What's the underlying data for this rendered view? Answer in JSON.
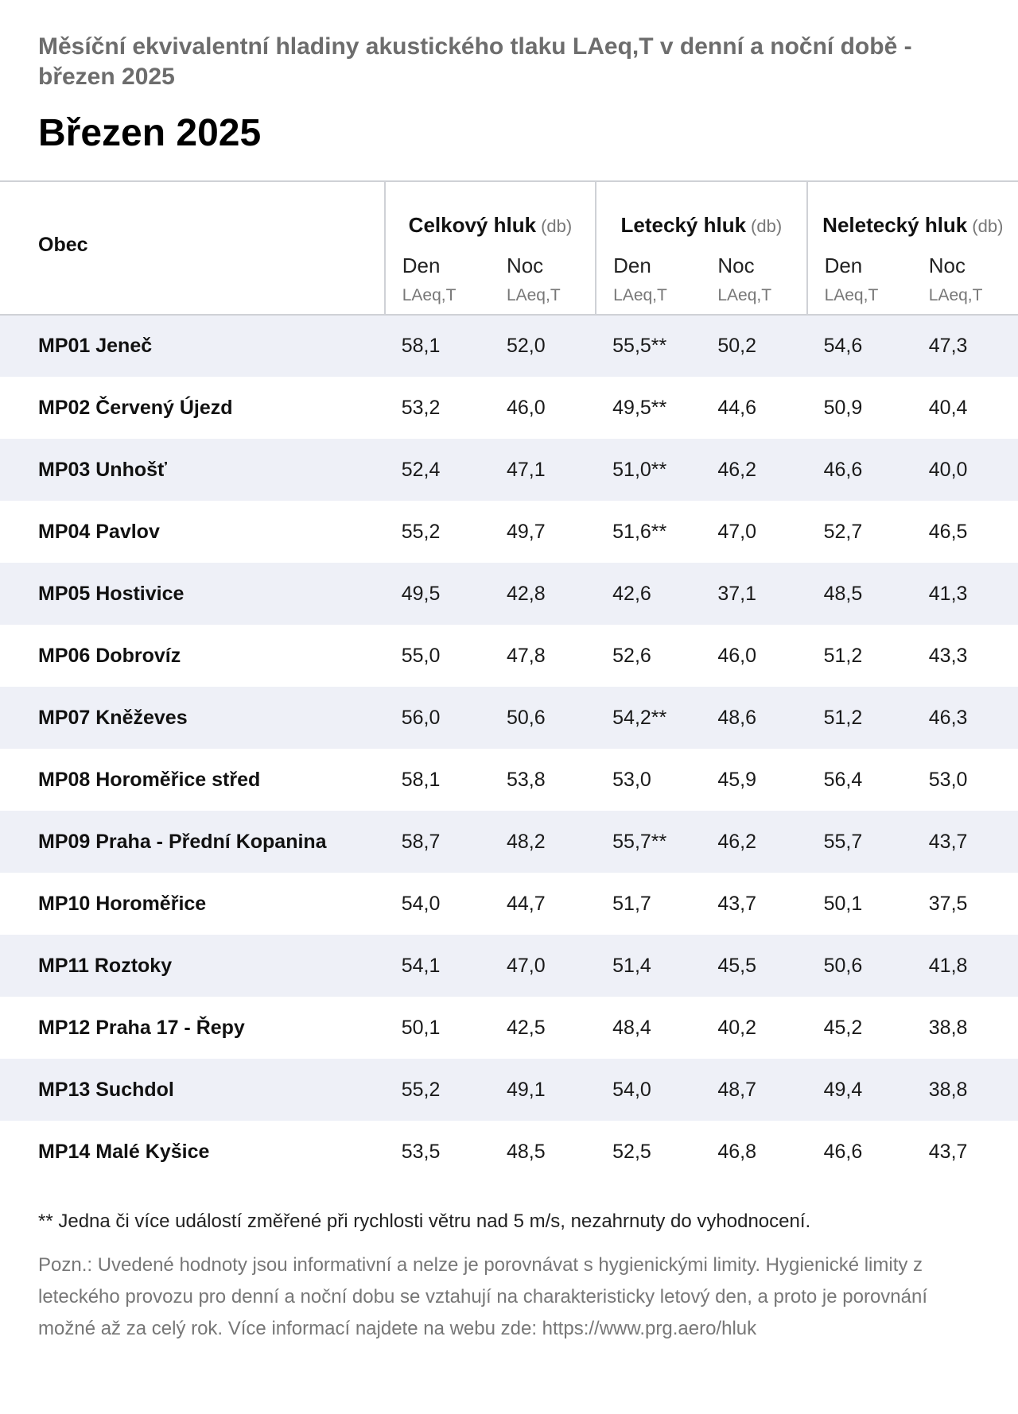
{
  "header": {
    "subtitle": "Měsíční ekvivalentní hladiny akustického tlaku LAeq,T v denní a noční době - březen 2025",
    "title": "Březen 2025"
  },
  "table": {
    "obec_label": "Obec",
    "groups": [
      {
        "label": "Celkový hluk",
        "unit": "(db)"
      },
      {
        "label": "Letecký hluk",
        "unit": "(db)"
      },
      {
        "label": "Neletecký hluk",
        "unit": "(db)"
      }
    ],
    "sub": {
      "den": "Den",
      "noc": "Noc",
      "unit": "LAeq,T"
    },
    "rows": [
      {
        "obec": "MP01 Jeneč",
        "values": [
          "58,1",
          "52,0",
          "55,5**",
          "50,2",
          "54,6",
          "47,3"
        ]
      },
      {
        "obec": "MP02 Červený Újezd",
        "values": [
          "53,2",
          "46,0",
          "49,5**",
          "44,6",
          "50,9",
          "40,4"
        ]
      },
      {
        "obec": "MP03 Unhošť",
        "values": [
          "52,4",
          "47,1",
          "51,0**",
          "46,2",
          "46,6",
          "40,0"
        ]
      },
      {
        "obec": "MP04 Pavlov",
        "values": [
          "55,2",
          "49,7",
          "51,6**",
          "47,0",
          "52,7",
          "46,5"
        ]
      },
      {
        "obec": "MP05 Hostivice",
        "values": [
          "49,5",
          "42,8",
          "42,6",
          "37,1",
          "48,5",
          "41,3"
        ]
      },
      {
        "obec": "MP06 Dobrovíz",
        "values": [
          "55,0",
          "47,8",
          "52,6",
          "46,0",
          "51,2",
          "43,3"
        ]
      },
      {
        "obec": "MP07 Kněževes",
        "values": [
          "56,0",
          "50,6",
          "54,2**",
          "48,6",
          "51,2",
          "46,3"
        ]
      },
      {
        "obec": "MP08 Horoměřice střed",
        "values": [
          "58,1",
          "53,8",
          "53,0",
          "45,9",
          "56,4",
          "53,0"
        ]
      },
      {
        "obec": "MP09 Praha - Přední Kopanina",
        "values": [
          "58,7",
          "48,2",
          "55,7**",
          "46,2",
          "55,7",
          "43,7"
        ]
      },
      {
        "obec": "MP10 Horoměřice",
        "values": [
          "54,0",
          "44,7",
          "51,7",
          "43,7",
          "50,1",
          "37,5"
        ]
      },
      {
        "obec": "MP11 Roztoky",
        "values": [
          "54,1",
          "47,0",
          "51,4",
          "45,5",
          "50,6",
          "41,8"
        ]
      },
      {
        "obec": "MP12 Praha 17 - Řepy",
        "values": [
          "50,1",
          "42,5",
          "48,4",
          "40,2",
          "45,2",
          "38,8"
        ]
      },
      {
        "obec": "MP13 Suchdol",
        "values": [
          "55,2",
          "49,1",
          "54,0",
          "48,7",
          "49,4",
          "38,8"
        ]
      },
      {
        "obec": "MP14 Malé Kyšice",
        "values": [
          "53,5",
          "48,5",
          "52,5",
          "46,8",
          "46,6",
          "43,7"
        ]
      }
    ]
  },
  "footer": {
    "footnote": "** Jedna či více událostí změřené při rychlosti větru nad 5 m/s, nezahrnuty do vyhodnocení.",
    "note": "Pozn.: Uvedené hodnoty jsou informativní a nelze je porovnávat s hygienickými limity. Hygienické limity z leteckého provozu pro denní a noční dobu se vztahují na charakteristicky letový den, a proto je porovnání možné až za celý rok. Více informací najdete na webu zde: https://www.prg.aero/hluk"
  }
}
